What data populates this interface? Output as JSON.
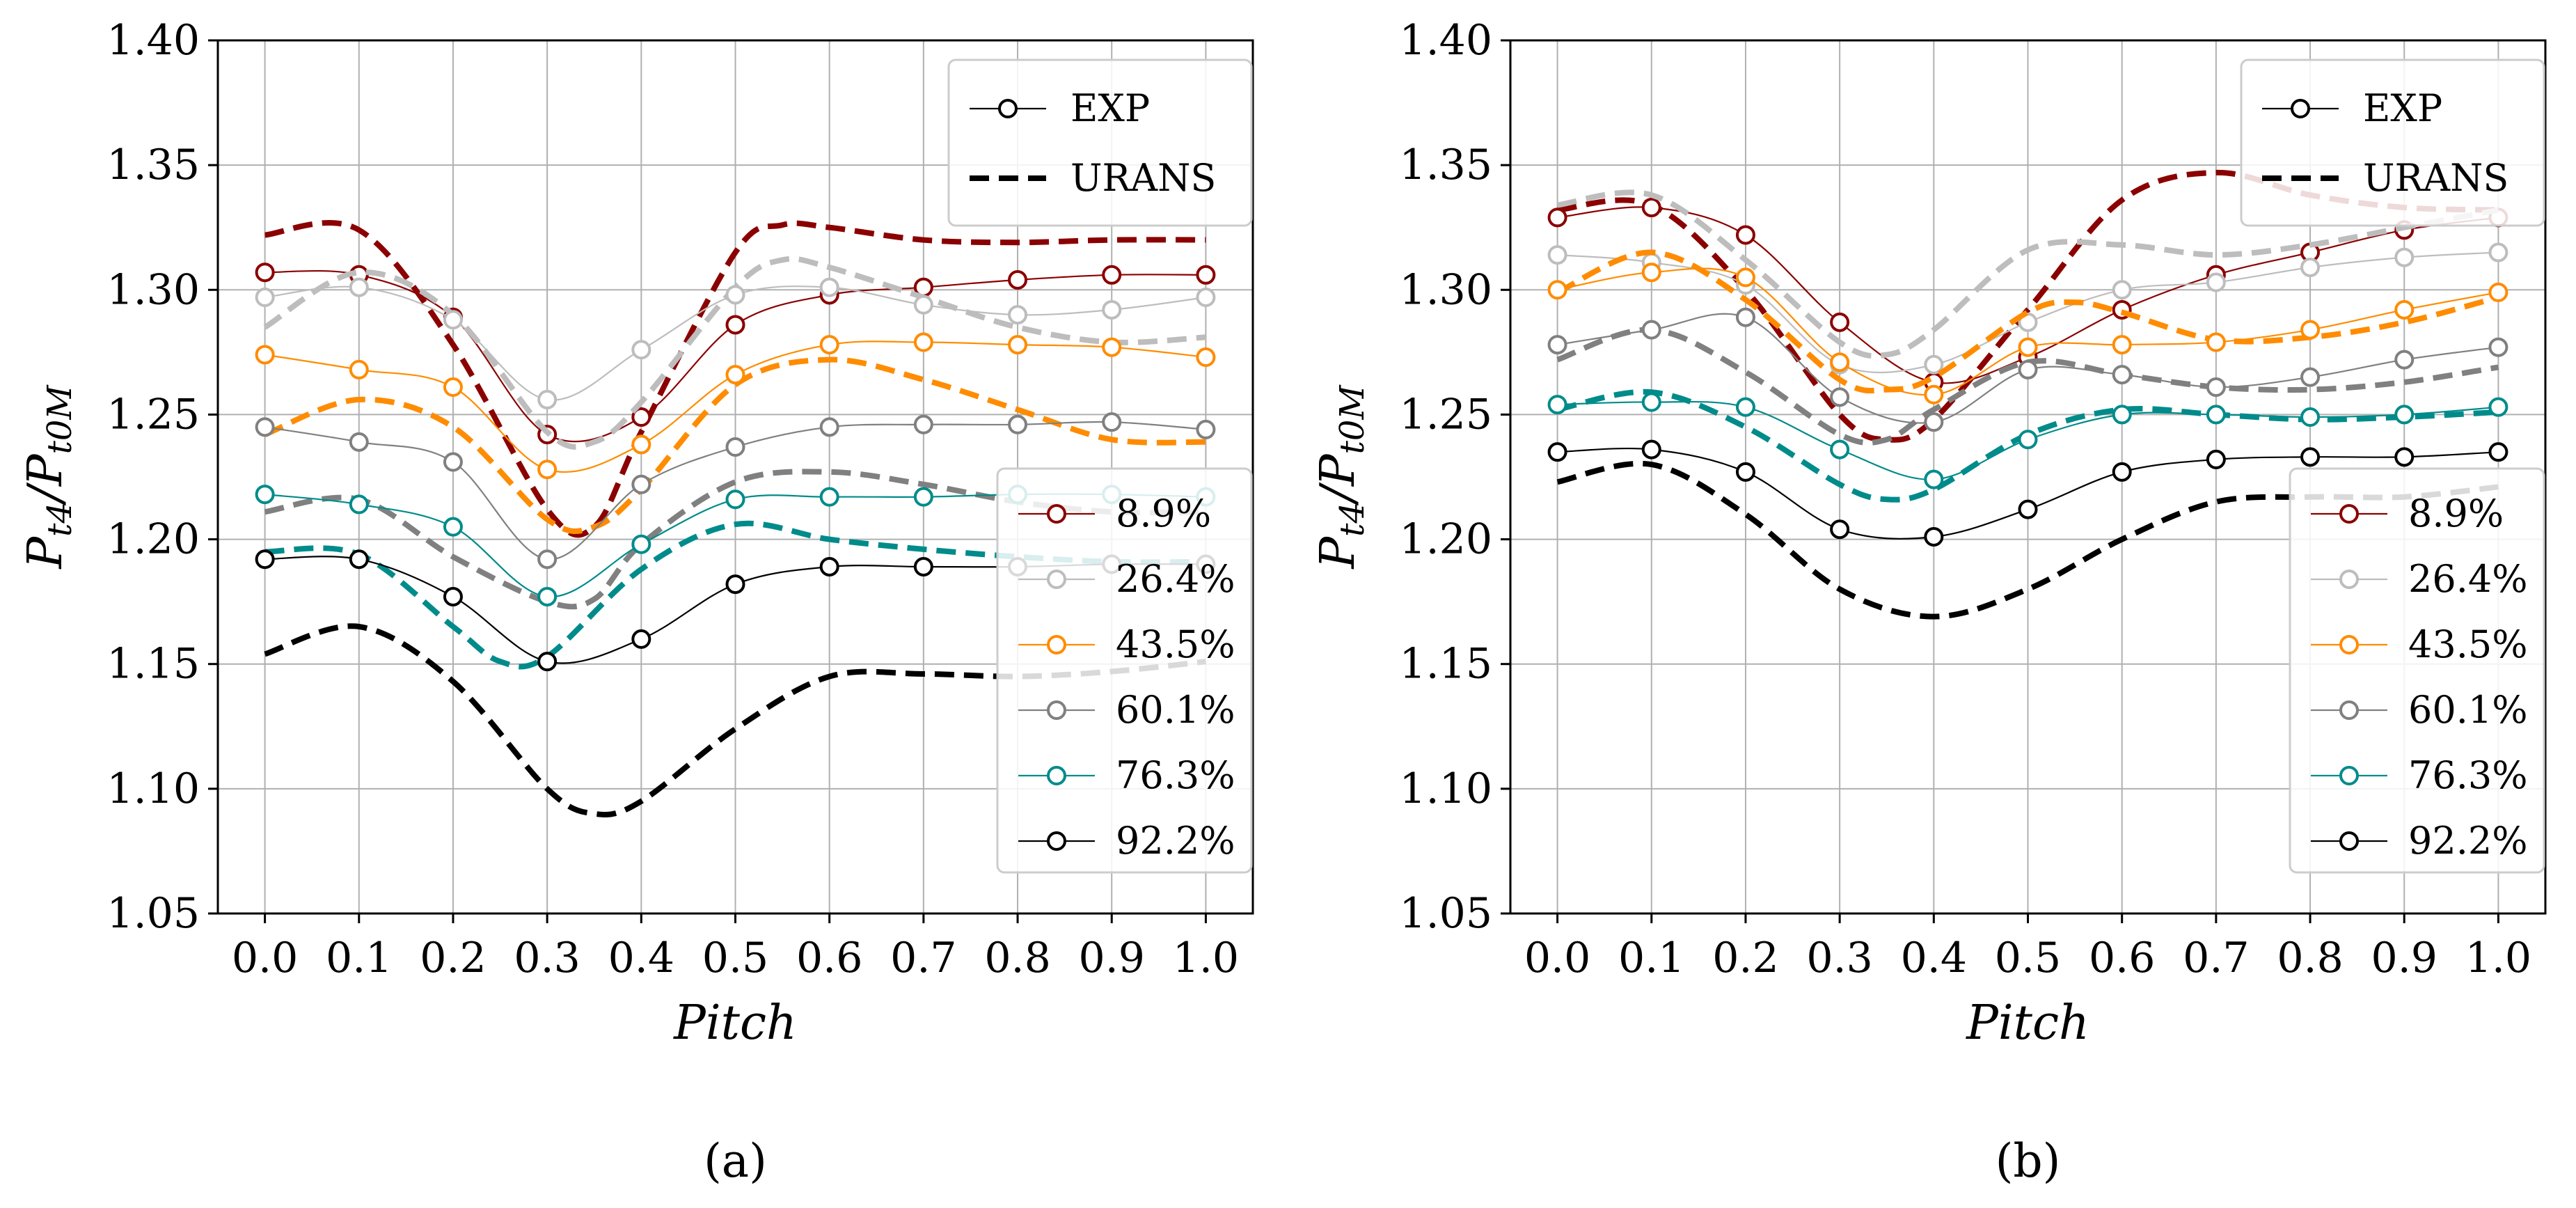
{
  "colors": {
    "8.9%": "#8b0000",
    "26.4%": "#bdbdbd",
    "43.5%": "#ff8c00",
    "60.1%": "#808080",
    "76.3%": "#008b8b",
    "92.2%": "#000000"
  },
  "legend_style": {
    "labels": [
      "EXP",
      "URANS"
    ]
  },
  "legend_series_labels": [
    "8.9%",
    "26.4%",
    "43.5%",
    "60.1%",
    "76.3%",
    "92.2%"
  ],
  "chart_data": [
    {
      "type": "line",
      "panel_label": "(a)",
      "xlabel": "Pitch",
      "ylabel": "P_t4 / P_t0M",
      "ylabel_main": "P",
      "ylabel_sub1": "t4",
      "ylabel_div": "/P",
      "ylabel_sub2": "t0M",
      "xlim": [
        -0.05,
        1.05
      ],
      "ylim": [
        1.05,
        1.4
      ],
      "xticks": [
        "0.0",
        "0.1",
        "0.2",
        "0.3",
        "0.4",
        "0.5",
        "0.6",
        "0.7",
        "0.8",
        "0.9",
        "1.0"
      ],
      "yticks": [
        "1.05",
        "1.10",
        "1.15",
        "1.20",
        "1.25",
        "1.30",
        "1.35",
        "1.40"
      ],
      "grid": true,
      "legend_placement": "top-right (style) and center-right (spans)",
      "x": [
        0.0,
        0.1,
        0.2,
        0.3,
        0.4,
        0.5,
        0.6,
        0.7,
        0.8,
        0.9,
        1.0
      ],
      "series": [
        {
          "name": "8.9%",
          "exp": [
            1.307,
            1.306,
            1.289,
            1.242,
            1.249,
            1.286,
            1.298,
            1.301,
            1.304,
            1.306,
            1.306
          ],
          "urans_x": [
            0.0,
            0.1,
            0.2,
            0.3,
            0.35,
            0.4,
            0.5,
            0.55,
            0.6,
            0.7,
            0.8,
            0.9,
            1.0
          ],
          "urans": [
            1.322,
            1.324,
            1.278,
            1.212,
            1.205,
            1.243,
            1.315,
            1.326,
            1.325,
            1.32,
            1.319,
            1.32,
            1.32
          ]
        },
        {
          "name": "26.4%",
          "exp": [
            1.297,
            1.301,
            1.288,
            1.256,
            1.276,
            1.298,
            1.301,
            1.294,
            1.29,
            1.292,
            1.297
          ],
          "urans_x": [
            0.0,
            0.1,
            0.2,
            0.3,
            0.35,
            0.4,
            0.5,
            0.55,
            0.6,
            0.7,
            0.8,
            0.9,
            1.0
          ],
          "urans": [
            1.285,
            1.307,
            1.29,
            1.243,
            1.239,
            1.255,
            1.301,
            1.312,
            1.309,
            1.297,
            1.285,
            1.279,
            1.281
          ]
        },
        {
          "name": "43.5%",
          "exp": [
            1.274,
            1.268,
            1.261,
            1.228,
            1.238,
            1.266,
            1.278,
            1.279,
            1.278,
            1.277,
            1.273
          ],
          "urans_x": [
            0.0,
            0.1,
            0.2,
            0.3,
            0.35,
            0.4,
            0.5,
            0.6,
            0.7,
            0.8,
            0.9,
            1.0
          ],
          "urans": [
            1.242,
            1.256,
            1.245,
            1.208,
            1.205,
            1.22,
            1.262,
            1.272,
            1.264,
            1.252,
            1.24,
            1.239
          ]
        },
        {
          "name": "60.1%",
          "exp": [
            1.245,
            1.239,
            1.231,
            1.192,
            1.222,
            1.237,
            1.245,
            1.246,
            1.246,
            1.247,
            1.244
          ],
          "urans_x": [
            0.0,
            0.1,
            0.2,
            0.3,
            0.35,
            0.4,
            0.5,
            0.6,
            0.7,
            0.8,
            0.9,
            1.0
          ],
          "urans": [
            1.211,
            1.216,
            1.193,
            1.175,
            1.176,
            1.198,
            1.223,
            1.227,
            1.222,
            1.215,
            1.211,
            1.211
          ]
        },
        {
          "name": "76.3%",
          "exp": [
            1.218,
            1.214,
            1.205,
            1.177,
            1.198,
            1.216,
            1.217,
            1.217,
            1.218,
            1.218,
            1.217
          ],
          "urans_x": [
            0.0,
            0.1,
            0.2,
            0.25,
            0.3,
            0.4,
            0.5,
            0.6,
            0.7,
            0.8,
            0.9,
            1.0
          ],
          "urans": [
            1.195,
            1.194,
            1.165,
            1.151,
            1.153,
            1.188,
            1.206,
            1.2,
            1.196,
            1.193,
            1.191,
            1.191
          ]
        },
        {
          "name": "92.2%",
          "exp": [
            1.192,
            1.192,
            1.177,
            1.151,
            1.16,
            1.182,
            1.189,
            1.189,
            1.189,
            1.19,
            1.19
          ],
          "urans_x": [
            0.0,
            0.1,
            0.2,
            0.3,
            0.35,
            0.4,
            0.5,
            0.6,
            0.7,
            0.8,
            0.9,
            1.0
          ],
          "urans": [
            1.154,
            1.165,
            1.143,
            1.1,
            1.09,
            1.095,
            1.124,
            1.145,
            1.146,
            1.145,
            1.147,
            1.151
          ]
        }
      ]
    },
    {
      "type": "line",
      "panel_label": "(b)",
      "xlabel": "Pitch",
      "ylabel": "P_t4 / P_t0M",
      "ylabel_main": "P",
      "ylabel_sub1": "t4",
      "ylabel_div": "/P",
      "ylabel_sub2": "t0M",
      "xlim": [
        -0.05,
        1.05
      ],
      "ylim": [
        1.05,
        1.4
      ],
      "xticks": [
        "0.0",
        "0.1",
        "0.2",
        "0.3",
        "0.4",
        "0.5",
        "0.6",
        "0.7",
        "0.8",
        "0.9",
        "1.0"
      ],
      "yticks": [
        "1.05",
        "1.10",
        "1.15",
        "1.20",
        "1.25",
        "1.30",
        "1.35",
        "1.40"
      ],
      "grid": true,
      "legend_placement": "top-right (style) and center-right (spans)",
      "x": [
        0.0,
        0.1,
        0.2,
        0.3,
        0.4,
        0.5,
        0.6,
        0.7,
        0.8,
        0.9,
        1.0
      ],
      "series": [
        {
          "name": "8.9%",
          "exp": [
            1.329,
            1.333,
            1.322,
            1.287,
            1.263,
            1.273,
            1.292,
            1.306,
            1.315,
            1.324,
            1.329
          ],
          "urans_x": [
            0.0,
            0.1,
            0.2,
            0.3,
            0.35,
            0.4,
            0.5,
            0.6,
            0.7,
            0.8,
            0.9,
            1.0
          ],
          "urans": [
            1.332,
            1.334,
            1.3,
            1.25,
            1.24,
            1.248,
            1.292,
            1.336,
            1.347,
            1.338,
            1.333,
            1.332
          ]
        },
        {
          "name": "26.4%",
          "exp": [
            1.314,
            1.311,
            1.302,
            1.27,
            1.27,
            1.287,
            1.3,
            1.303,
            1.309,
            1.313,
            1.315
          ],
          "urans_x": [
            0.0,
            0.1,
            0.2,
            0.3,
            0.35,
            0.4,
            0.5,
            0.6,
            0.7,
            0.8,
            0.9,
            1.0
          ],
          "urans": [
            1.334,
            1.338,
            1.312,
            1.279,
            1.274,
            1.284,
            1.316,
            1.318,
            1.314,
            1.318,
            1.325,
            1.332
          ]
        },
        {
          "name": "43.5%",
          "exp": [
            1.3,
            1.307,
            1.305,
            1.271,
            1.258,
            1.277,
            1.278,
            1.279,
            1.284,
            1.292,
            1.299
          ],
          "urans_x": [
            0.0,
            0.1,
            0.2,
            0.3,
            0.35,
            0.4,
            0.5,
            0.55,
            0.6,
            0.7,
            0.8,
            0.9,
            1.0
          ],
          "urans": [
            1.299,
            1.315,
            1.296,
            1.264,
            1.26,
            1.265,
            1.291,
            1.295,
            1.291,
            1.28,
            1.281,
            1.287,
            1.297
          ]
        },
        {
          "name": "60.1%",
          "exp": [
            1.278,
            1.284,
            1.289,
            1.257,
            1.247,
            1.268,
            1.266,
            1.261,
            1.265,
            1.272,
            1.277
          ],
          "urans_x": [
            0.0,
            0.1,
            0.2,
            0.3,
            0.35,
            0.4,
            0.5,
            0.6,
            0.7,
            0.8,
            0.9,
            1.0
          ],
          "urans": [
            1.272,
            1.284,
            1.267,
            1.242,
            1.24,
            1.252,
            1.271,
            1.266,
            1.261,
            1.26,
            1.263,
            1.269
          ]
        },
        {
          "name": "76.3%",
          "exp": [
            1.254,
            1.255,
            1.253,
            1.236,
            1.224,
            1.24,
            1.25,
            1.25,
            1.249,
            1.25,
            1.253
          ],
          "urans_x": [
            0.0,
            0.1,
            0.2,
            0.3,
            0.35,
            0.4,
            0.5,
            0.6,
            0.7,
            0.8,
            0.9,
            1.0
          ],
          "urans": [
            1.252,
            1.259,
            1.245,
            1.222,
            1.216,
            1.22,
            1.242,
            1.252,
            1.25,
            1.248,
            1.249,
            1.251
          ]
        },
        {
          "name": "92.2%",
          "exp": [
            1.235,
            1.236,
            1.227,
            1.204,
            1.201,
            1.212,
            1.227,
            1.232,
            1.233,
            1.233,
            1.235
          ],
          "urans_x": [
            0.0,
            0.1,
            0.2,
            0.3,
            0.4,
            0.5,
            0.6,
            0.7,
            0.8,
            0.9,
            1.0
          ],
          "urans": [
            1.223,
            1.23,
            1.21,
            1.18,
            1.169,
            1.18,
            1.2,
            1.215,
            1.217,
            1.217,
            1.221
          ]
        }
      ]
    }
  ]
}
